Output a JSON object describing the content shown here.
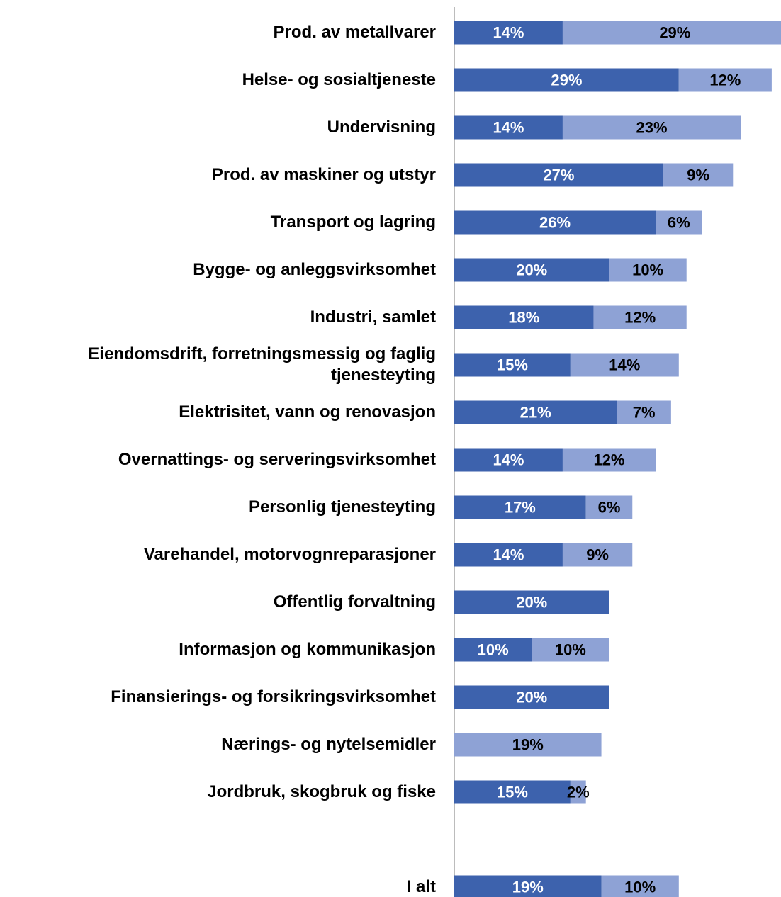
{
  "chart_data": {
    "type": "bar",
    "orientation": "horizontal",
    "stacked": true,
    "categories": [
      "Prod. av metallvarer",
      "Helse- og sosialtjeneste",
      "Undervisning",
      "Prod. av maskiner og utstyr",
      "Transport og lagring",
      "Bygge- og anleggsvirksomhet",
      "Industri, samlet",
      "Eiendomsdrift, forretningsmessig og faglig tjenesteyting",
      "Elektrisitet, vann og renovasjon",
      "Overnattings- og serveringsvirksomhet",
      "Personlig tjenesteyting",
      "Varehandel, motorvognreparasjoner",
      "Offentlig forvaltning",
      "Informasjon og kommunikasjon",
      "Finansierings- og forsikringsvirksomhet",
      "Nærings- og nytelsemidler",
      "Jordbruk, skogbruk og fiske",
      null,
      "I alt"
    ],
    "series": [
      {
        "color": "#3d62ad",
        "label_color": "#ffffff",
        "values": [
          14,
          29,
          14,
          27,
          26,
          20,
          18,
          15,
          21,
          14,
          17,
          14,
          20,
          10,
          20,
          null,
          15,
          null,
          19
        ],
        "value_labels": [
          "14%",
          "29%",
          "14%",
          "27%",
          "26%",
          "20%",
          "18%",
          "15%",
          "21%",
          "14%",
          "17%",
          "14%",
          "20%",
          "10%",
          "20%",
          null,
          "15%",
          null,
          "19%"
        ]
      },
      {
        "color": "#8ea2d5",
        "label_color": "#000000",
        "values": [
          29,
          12,
          23,
          9,
          6,
          10,
          12,
          14,
          7,
          12,
          6,
          9,
          null,
          10,
          null,
          19,
          2,
          null,
          10
        ],
        "value_labels": [
          "29%",
          "12%",
          "23%",
          "9%",
          "6%",
          "10%",
          "12%",
          "14%",
          "7%",
          "12%",
          "6%",
          "9%",
          null,
          "10%",
          null,
          "19%",
          "2%",
          null,
          "10%"
        ]
      }
    ],
    "xlim": [
      0,
      42.2
    ]
  }
}
